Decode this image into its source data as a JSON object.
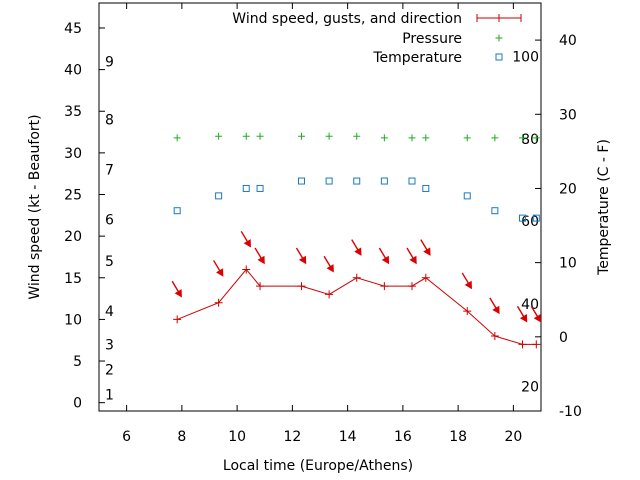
{
  "chart_data": {
    "type": "line",
    "xlabel": "Local time (Europe/Athens)",
    "ylabel_left": "Wind speed (kt - Beaufort)",
    "ylabel_right": "Temperature (C - F)",
    "xlim": [
      5,
      21
    ],
    "ylim_left": [
      -1,
      48
    ],
    "ylim_right": [
      -10,
      45
    ],
    "x_ticks": [
      6,
      8,
      10,
      12,
      14,
      16,
      18,
      20
    ],
    "y_left_ticks": [
      0,
      5,
      10,
      15,
      20,
      25,
      30,
      35,
      40,
      45
    ],
    "y_right_ticks": [
      -10,
      0,
      10,
      20,
      30,
      40
    ],
    "beaufort_labels": [
      {
        "label": "1",
        "kt": 1
      },
      {
        "label": "2",
        "kt": 4
      },
      {
        "label": "3",
        "kt": 7
      },
      {
        "label": "4",
        "kt": 11
      },
      {
        "label": "5",
        "kt": 17
      },
      {
        "label": "6",
        "kt": 22
      },
      {
        "label": "7",
        "kt": 28
      },
      {
        "label": "8",
        "kt": 34
      },
      {
        "label": "9",
        "kt": 41
      }
    ],
    "fahrenheit_labels": [
      {
        "label": "20",
        "celsius": -6.7
      },
      {
        "label": "40",
        "celsius": 4.4
      },
      {
        "label": "60",
        "celsius": 15.6
      },
      {
        "label": "80",
        "celsius": 26.7
      },
      {
        "label": "100",
        "celsius": 37.8
      }
    ],
    "legend": [
      {
        "label": "Wind speed, gusts, and direction",
        "color": "#cc0000",
        "marker": "line-plus"
      },
      {
        "label": "Pressure",
        "color": "#22aa22",
        "marker": "plus"
      },
      {
        "label": "Temperature",
        "color": "#1a7abf",
        "marker": "square"
      }
    ],
    "series": [
      {
        "name": "Wind speed",
        "color": "#cc0000",
        "x": [
          7.83,
          9.33,
          10.33,
          10.83,
          12.33,
          13.33,
          14.33,
          15.33,
          16.33,
          16.83,
          18.33,
          19.33,
          20.33,
          20.83
        ],
        "y": [
          10,
          12,
          16,
          14,
          14,
          13,
          15,
          14,
          14,
          15,
          11,
          8,
          7,
          7
        ]
      },
      {
        "name": "Pressure",
        "color": "#22aa22",
        "x": [
          7.83,
          9.33,
          10.33,
          10.83,
          12.33,
          13.33,
          14.33,
          15.33,
          16.33,
          16.83,
          18.33,
          19.33,
          20.33,
          20.83
        ],
        "y": [
          31.8,
          32.0,
          32.0,
          32.0,
          32.0,
          32.0,
          32.0,
          31.8,
          31.8,
          31.8,
          31.8,
          31.8,
          31.8,
          31.8
        ]
      },
      {
        "name": "Temperature",
        "color": "#1a7abf",
        "axis": "right",
        "x": [
          7.83,
          9.33,
          10.33,
          10.83,
          12.33,
          13.33,
          14.33,
          15.33,
          16.33,
          16.83,
          18.33,
          19.33,
          20.33,
          20.83
        ],
        "y": [
          17,
          19,
          20,
          20,
          21,
          21,
          21,
          21,
          21,
          20,
          19,
          17,
          16,
          16
        ]
      }
    ],
    "wind_direction_arrows": [
      {
        "x": 7.83,
        "kt": 13.5
      },
      {
        "x": 9.33,
        "kt": 16.0
      },
      {
        "x": 10.33,
        "kt": 19.5
      },
      {
        "x": 10.83,
        "kt": 17.5
      },
      {
        "x": 12.33,
        "kt": 17.5
      },
      {
        "x": 13.33,
        "kt": 16.5
      },
      {
        "x": 14.33,
        "kt": 18.5
      },
      {
        "x": 15.33,
        "kt": 17.5
      },
      {
        "x": 16.33,
        "kt": 17.5
      },
      {
        "x": 16.83,
        "kt": 18.5
      },
      {
        "x": 18.33,
        "kt": 14.5
      },
      {
        "x": 19.33,
        "kt": 11.5
      },
      {
        "x": 20.33,
        "kt": 10.5
      },
      {
        "x": 20.83,
        "kt": 10.5
      }
    ]
  }
}
